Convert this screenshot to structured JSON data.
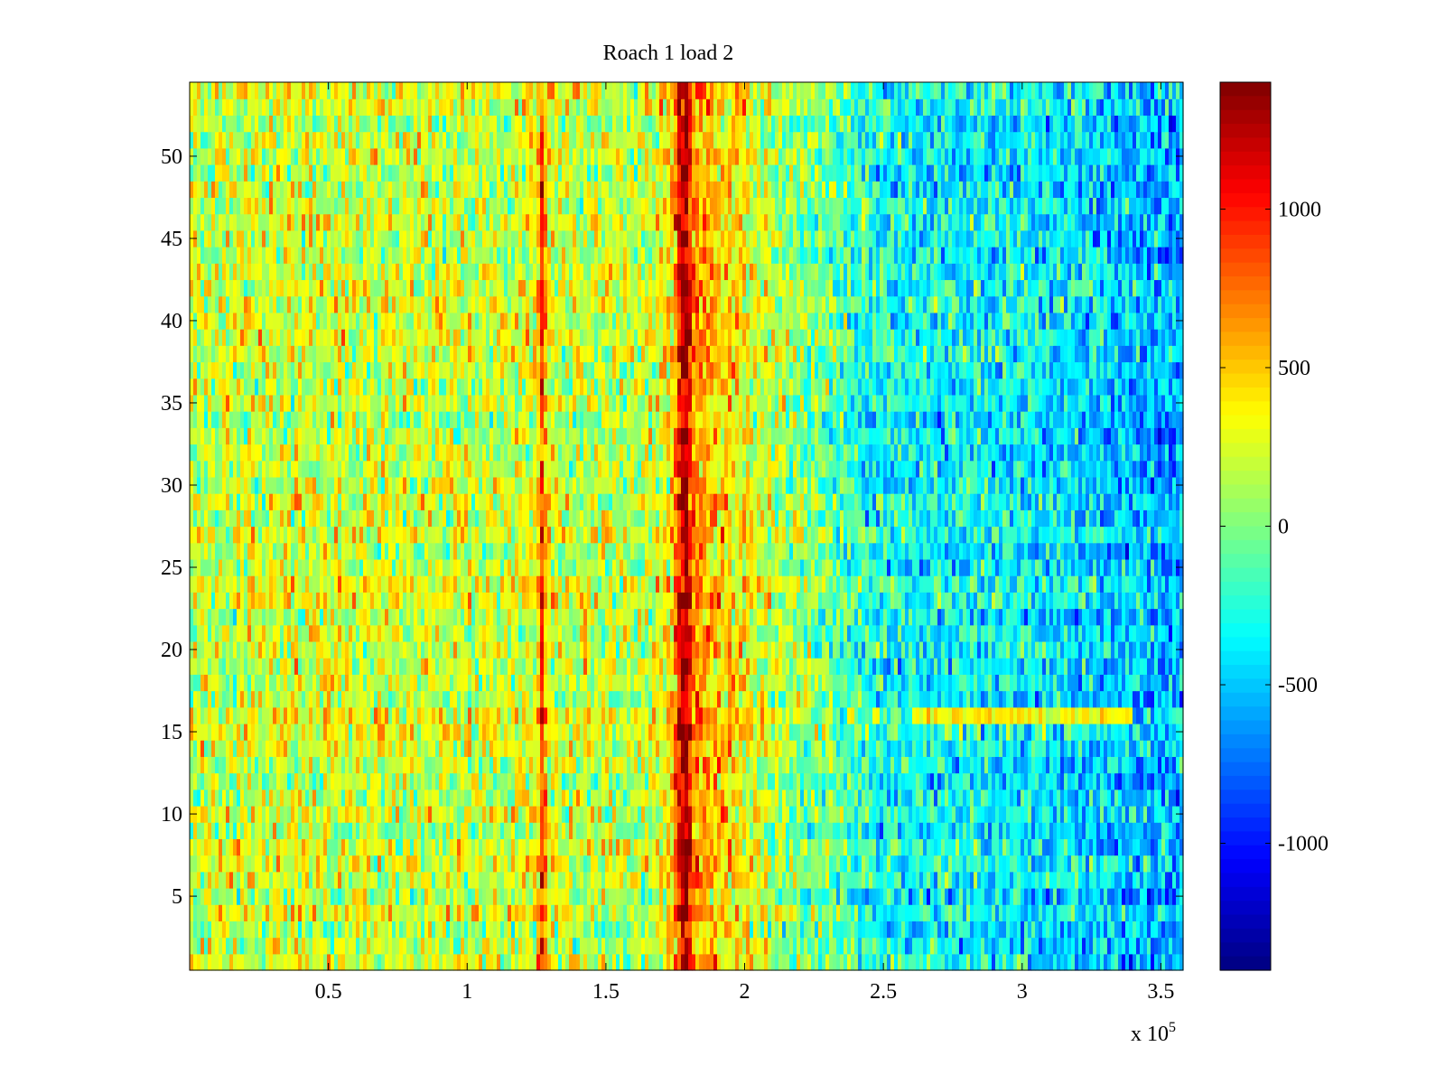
{
  "chart_data": {
    "type": "heatmap",
    "title": "Roach 1 load 2",
    "xlabel": "",
    "ylabel": "",
    "x_exponent_label": "x 10",
    "x_exponent_power": "5",
    "xlim": [
      0,
      3.58
    ],
    "ylim": [
      0.5,
      54.5
    ],
    "x_ticks": [
      0.5,
      1,
      1.5,
      2,
      2.5,
      3,
      3.5
    ],
    "x_tick_labels": [
      "0.5",
      "1",
      "1.5",
      "2",
      "2.5",
      "3",
      "3.5"
    ],
    "y_ticks": [
      5,
      10,
      15,
      20,
      25,
      30,
      35,
      40,
      45,
      50
    ],
    "y_tick_labels": [
      "5",
      "10",
      "15",
      "20",
      "25",
      "30",
      "35",
      "40",
      "45",
      "50"
    ],
    "rows": 54,
    "colormap": "jet",
    "clim": [
      -1400,
      1400
    ],
    "colorbar_ticks": [
      1000,
      500,
      0,
      -500,
      -1000
    ],
    "colorbar_tick_labels": [
      "1000",
      "500",
      "0",
      "-500",
      "-1000"
    ],
    "column_profile": {
      "x": [
        0,
        0.25,
        0.5,
        0.75,
        1.0,
        1.15,
        1.25,
        1.27,
        1.29,
        1.35,
        1.5,
        1.65,
        1.74,
        1.77,
        1.79,
        1.82,
        1.9,
        2.0,
        2.1,
        2.3,
        2.5,
        2.75,
        3.0,
        3.25,
        3.5,
        3.58
      ],
      "value": [
        200,
        230,
        230,
        210,
        200,
        230,
        300,
        950,
        300,
        200,
        170,
        180,
        400,
        1250,
        1300,
        650,
        500,
        350,
        150,
        -50,
        -300,
        -350,
        -350,
        -450,
        -550,
        -550
      ]
    },
    "row_band": {
      "rows": [
        16
      ],
      "x_range": [
        2.6,
        3.4
      ],
      "value": 350
    },
    "grid": false,
    "legend": "colorbar-right"
  }
}
